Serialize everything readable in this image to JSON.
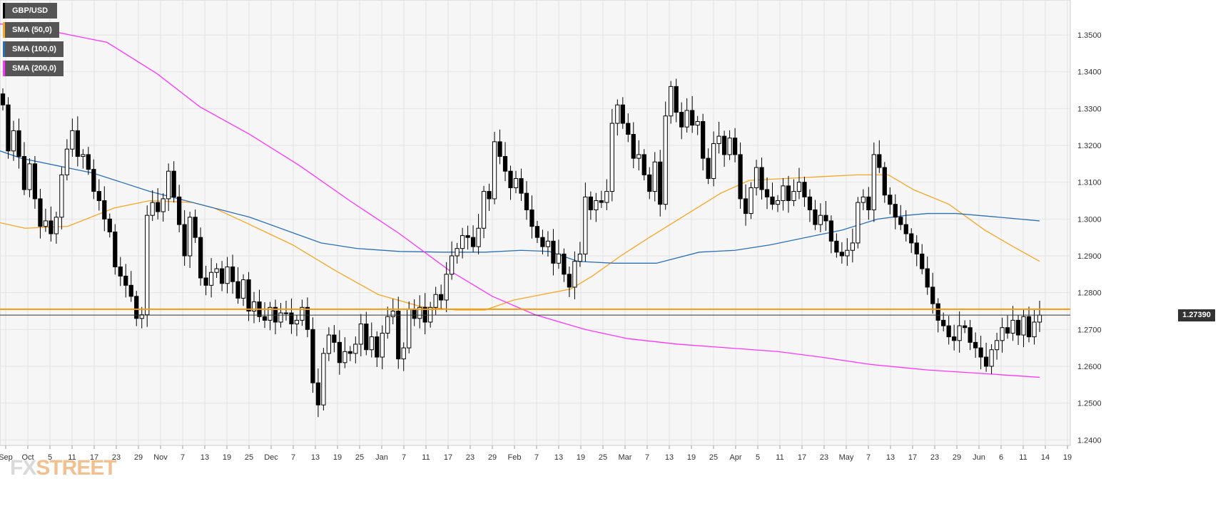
{
  "chart_data": {
    "type": "candlestick",
    "symbol": "GBP/USD",
    "current_price_label": "1.27390",
    "current_price": 1.2739,
    "resistance_level": 1.2755,
    "ylim": [
      1.2385,
      1.3595
    ],
    "y_ticks": [
      "1.2400",
      "1.2500",
      "1.2600",
      "1.2700",
      "1.2800",
      "1.2900",
      "1.3000",
      "1.3100",
      "1.3200",
      "1.3300",
      "1.3400",
      "1.3500"
    ],
    "x_ticks": [
      "Sep",
      "Oct",
      "5",
      "11",
      "17",
      "23",
      "29",
      "Nov",
      "7",
      "13",
      "19",
      "25",
      "Dec",
      "7",
      "13",
      "19",
      "25",
      "Jan",
      "7",
      "11",
      "17",
      "23",
      "29",
      "Feb",
      "7",
      "13",
      "19",
      "25",
      "Mar",
      "7",
      "13",
      "19",
      "25",
      "Apr",
      "5",
      "11",
      "17",
      "23",
      "May",
      "7",
      "13",
      "17",
      "23",
      "29",
      "Jun",
      "6",
      "11",
      "14",
      "19"
    ],
    "legend": [
      {
        "name": "GBP/USD",
        "color": "#000000"
      },
      {
        "name": "SMA (50,0)",
        "color": "#f5a623"
      },
      {
        "name": "SMA (100,0)",
        "color": "#2c6fb5"
      },
      {
        "name": "SMA (200,0)",
        "color": "#ff33ff"
      }
    ],
    "candle_closes": [
      1.331,
      1.3185,
      1.324,
      1.317,
      1.308,
      1.315,
      1.3055,
      1.298,
      1.2995,
      1.296,
      1.3005,
      1.312,
      1.319,
      1.324,
      1.317,
      1.3175,
      1.3135,
      1.3075,
      1.305,
      1.3,
      1.2965,
      1.287,
      1.2845,
      1.282,
      1.279,
      1.273,
      1.274,
      1.301,
      1.3045,
      1.302,
      1.3055,
      1.313,
      1.306,
      1.2985,
      1.29,
      1.3005,
      1.295,
      1.284,
      1.282,
      1.2855,
      1.2865,
      1.2825,
      1.287,
      1.283,
      1.2785,
      1.2835,
      1.275,
      1.2775,
      1.2735,
      1.2725,
      1.276,
      1.272,
      1.2745,
      1.2745,
      1.2715,
      1.2725,
      1.276,
      1.27,
      1.2555,
      1.2495,
      1.2635,
      1.2685,
      1.2665,
      1.261,
      1.264,
      1.2635,
      1.266,
      1.2715,
      1.2645,
      1.268,
      1.2625,
      1.269,
      1.2735,
      1.275,
      1.262,
      1.265,
      1.2755,
      1.273,
      1.276,
      1.272,
      1.276,
      1.2795,
      1.278,
      1.285,
      1.29,
      1.292,
      1.2955,
      1.295,
      1.2925,
      1.2975,
      1.3075,
      1.3055,
      1.321,
      1.317,
      1.313,
      1.3085,
      1.311,
      1.307,
      1.3025,
      1.298,
      1.295,
      1.2925,
      1.294,
      1.288,
      1.2905,
      1.285,
      1.2815,
      1.2885,
      1.2905,
      1.306,
      1.3025,
      1.305,
      1.3045,
      1.3075,
      1.326,
      1.331,
      1.326,
      1.323,
      1.3165,
      1.3175,
      1.312,
      1.3075,
      1.3155,
      1.304,
      1.328,
      1.336,
      1.329,
      1.325,
      1.3295,
      1.3255,
      1.3265,
      1.3165,
      1.311,
      1.3205,
      1.3225,
      1.3175,
      1.322,
      1.3175,
      1.3055,
      1.3015,
      1.3085,
      1.314,
      1.308,
      1.306,
      1.304,
      1.305,
      1.309,
      1.305,
      1.3075,
      1.31,
      1.306,
      1.3025,
      1.2985,
      1.301,
      1.2995,
      1.294,
      1.291,
      1.29,
      1.2915,
      1.2935,
      1.3045,
      1.306,
      1.3025,
      1.3175,
      1.314,
      1.3065,
      1.304,
      1.3005,
      1.2985,
      1.296,
      1.2935,
      1.2905,
      1.2865,
      1.2815,
      1.277,
      1.2725,
      1.271,
      1.268,
      1.267,
      1.271,
      1.2705,
      1.2665,
      1.265,
      1.2625,
      1.26,
      1.2645,
      1.267,
      1.2705,
      1.269,
      1.2725,
      1.2685,
      1.2735,
      1.268,
      1.272,
      1.2739
    ],
    "sma_50": [
      [
        0,
        1.299
      ],
      [
        35,
        1.2975
      ],
      [
        95,
        1.298
      ],
      [
        160,
        1.303
      ],
      [
        210,
        1.305
      ],
      [
        270,
        1.3045
      ],
      [
        300,
        1.303
      ],
      [
        350,
        1.2985
      ],
      [
        410,
        1.293
      ],
      [
        470,
        1.286
      ],
      [
        530,
        1.2795
      ],
      [
        590,
        1.2762
      ],
      [
        640,
        1.2753
      ],
      [
        680,
        1.2753
      ],
      [
        720,
        1.278
      ],
      [
        760,
        1.2795
      ],
      [
        800,
        1.281
      ],
      [
        830,
        1.2845
      ],
      [
        870,
        1.29
      ],
      [
        910,
        1.295
      ],
      [
        960,
        1.301
      ],
      [
        1010,
        1.307
      ],
      [
        1050,
        1.3105
      ],
      [
        1100,
        1.311
      ],
      [
        1150,
        1.3115
      ],
      [
        1200,
        1.312
      ],
      [
        1245,
        1.312
      ],
      [
        1280,
        1.308
      ],
      [
        1330,
        1.304
      ],
      [
        1380,
        1.297
      ],
      [
        1420,
        1.2925
      ],
      [
        1457,
        1.2885
      ]
    ],
    "sma_100": [
      [
        0,
        1.3185
      ],
      [
        30,
        1.3165
      ],
      [
        80,
        1.3145
      ],
      [
        130,
        1.3125
      ],
      [
        170,
        1.31
      ],
      [
        210,
        1.3075
      ],
      [
        260,
        1.305
      ],
      [
        300,
        1.303
      ],
      [
        350,
        1.3005
      ],
      [
        400,
        1.297
      ],
      [
        450,
        1.2935
      ],
      [
        500,
        1.292
      ],
      [
        560,
        1.2912
      ],
      [
        620,
        1.291
      ],
      [
        680,
        1.291
      ],
      [
        730,
        1.2915
      ],
      [
        770,
        1.2912
      ],
      [
        810,
        1.2885
      ],
      [
        860,
        1.288
      ],
      [
        920,
        1.288
      ],
      [
        980,
        1.291
      ],
      [
        1030,
        1.2915
      ],
      [
        1080,
        1.293
      ],
      [
        1130,
        1.295
      ],
      [
        1180,
        1.297
      ],
      [
        1230,
        1.3
      ],
      [
        1270,
        1.301
      ],
      [
        1300,
        1.3015
      ],
      [
        1340,
        1.3015
      ],
      [
        1400,
        1.3005
      ],
      [
        1457,
        1.2995
      ]
    ],
    "sma_200": [
      [
        0,
        1.353
      ],
      [
        60,
        1.3515
      ],
      [
        150,
        1.348
      ],
      [
        220,
        1.3395
      ],
      [
        280,
        1.3305
      ],
      [
        350,
        1.323
      ],
      [
        420,
        1.3145
      ],
      [
        490,
        1.305
      ],
      [
        560,
        1.296
      ],
      [
        630,
        1.286
      ],
      [
        690,
        1.279
      ],
      [
        750,
        1.274
      ],
      [
        820,
        1.27
      ],
      [
        880,
        1.2675
      ],
      [
        950,
        1.266
      ],
      [
        1020,
        1.265
      ],
      [
        1090,
        1.264
      ],
      [
        1150,
        1.2625
      ],
      [
        1220,
        1.2605
      ],
      [
        1300,
        1.259
      ],
      [
        1380,
        1.258
      ],
      [
        1457,
        1.257
      ]
    ]
  }
}
